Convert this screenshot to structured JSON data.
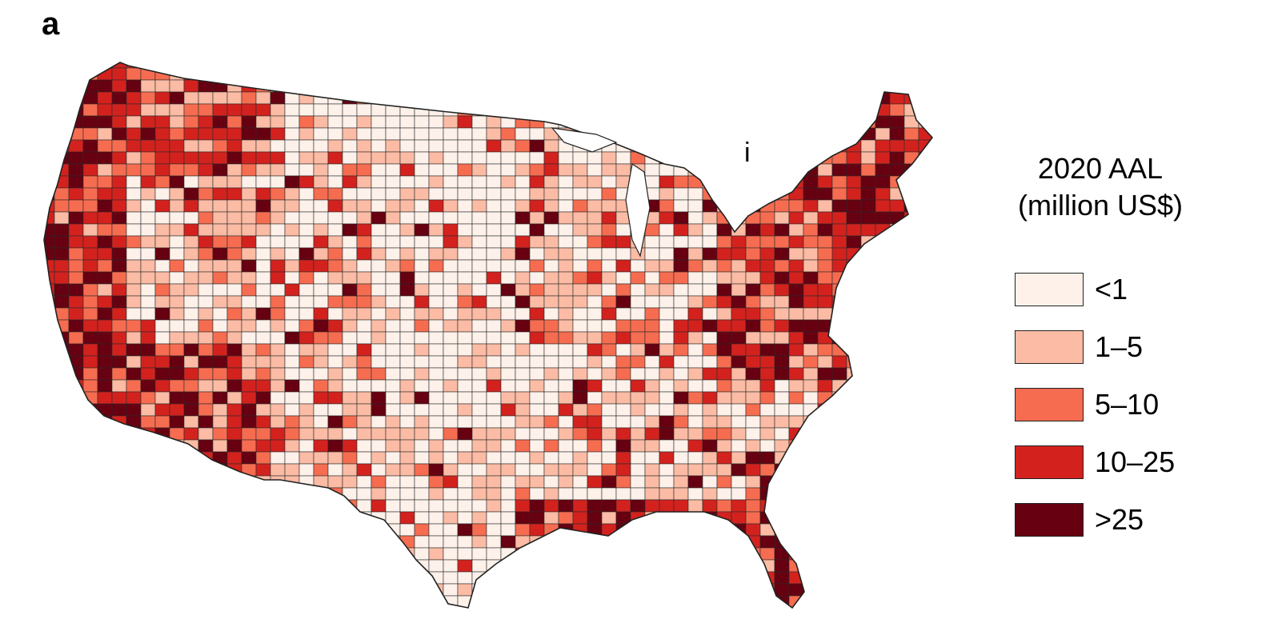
{
  "figure": {
    "panel_letter": "a",
    "inset_label": "i"
  },
  "legend": {
    "title_line1": "2020 AAL",
    "title_line2": "(million US$)",
    "items": [
      {
        "label": "<1",
        "color": "#fdf1ea"
      },
      {
        "label": "1–5",
        "color": "#fbbba4"
      },
      {
        "label": "5–10",
        "color": "#f66c50"
      },
      {
        "label": "10–25",
        "color": "#d3221e"
      },
      {
        "label": ">25",
        "color": "#670010"
      }
    ]
  }
}
